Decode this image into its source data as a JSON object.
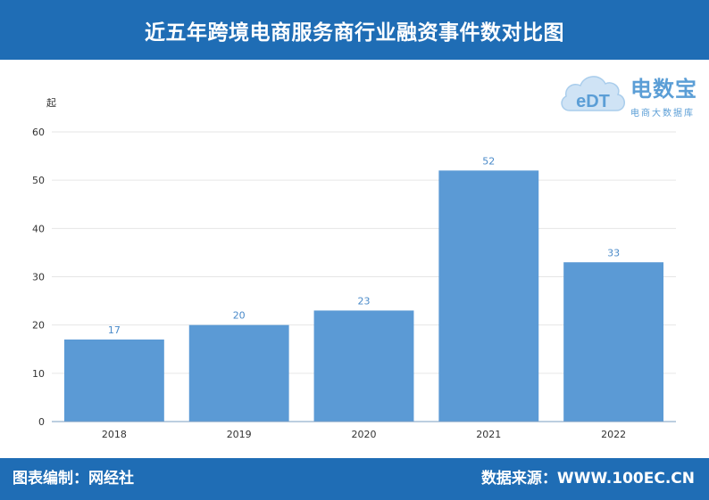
{
  "header": {
    "title": "近五年跨境电商服务商行业融资事件数对比图"
  },
  "footer": {
    "left": "图表编制：网经社",
    "right": "数据来源：WWW.100EC.CN"
  },
  "logo": {
    "mark": "eDT",
    "name": "电数宝",
    "sub": "电商大数据库",
    "color": "#5b9ed6"
  },
  "chart_data": {
    "type": "bar",
    "categories": [
      "2018",
      "2019",
      "2020",
      "2021",
      "2022"
    ],
    "values": [
      17,
      20,
      23,
      52,
      33
    ],
    "ylabel": "起",
    "ylim": [
      0,
      60
    ],
    "yticks": [
      0,
      10,
      20,
      30,
      40,
      50,
      60
    ],
    "grid": true,
    "bar_color": "#5b9ad5",
    "label_color": "#4a8ac9"
  }
}
